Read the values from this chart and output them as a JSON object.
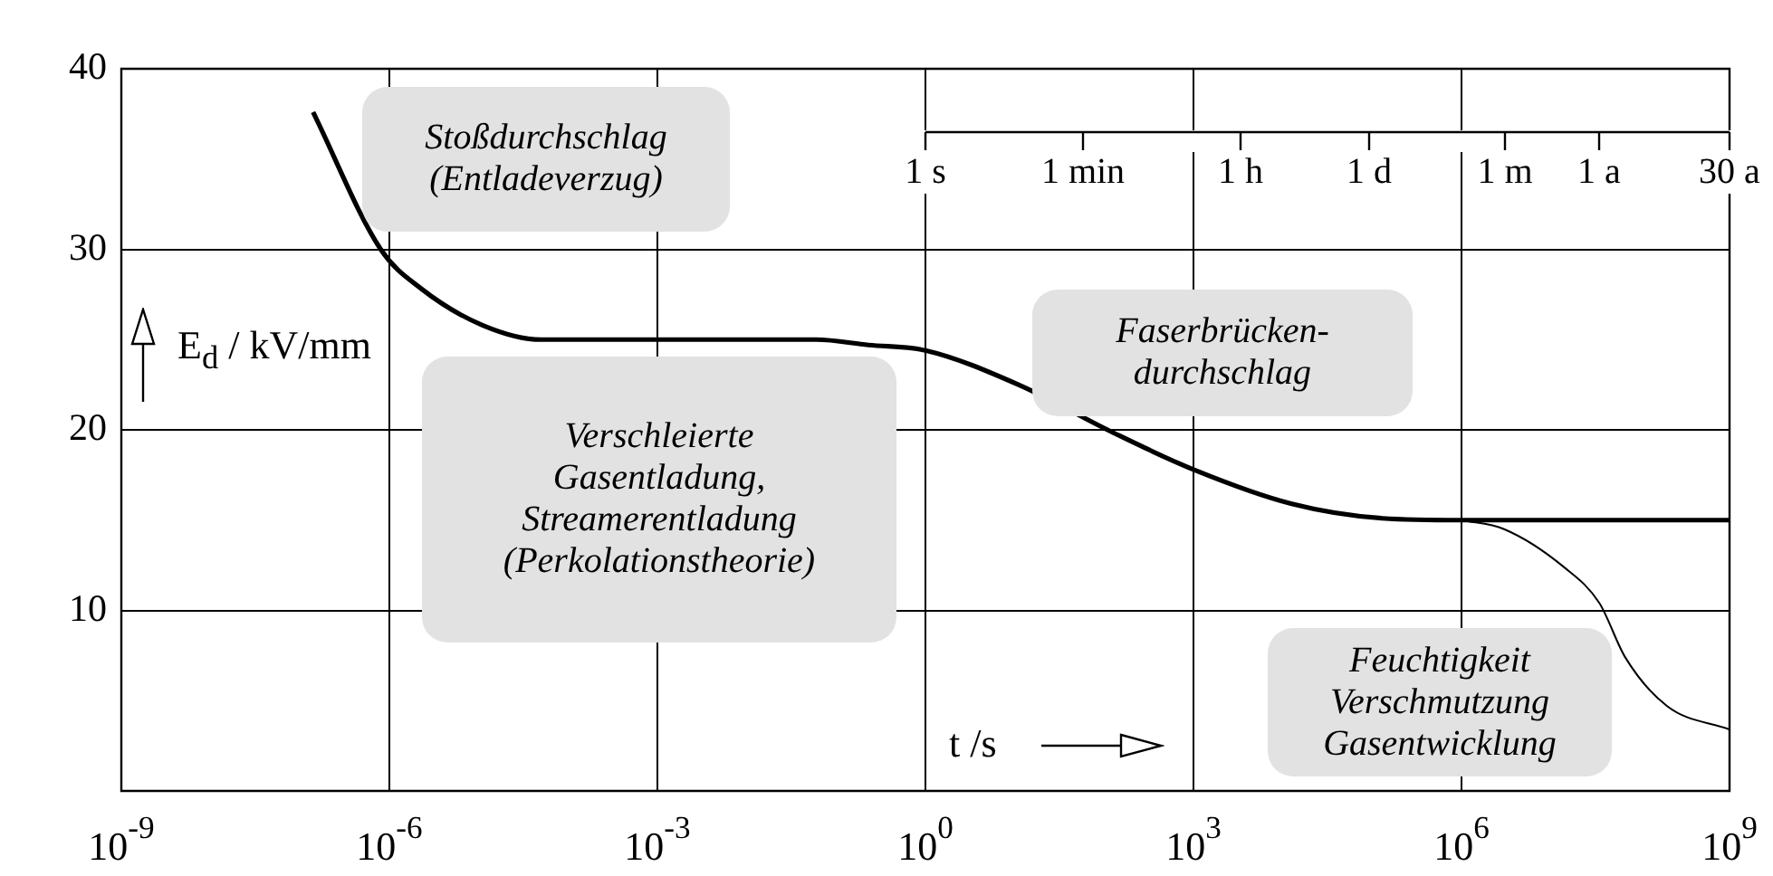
{
  "chart_data": {
    "type": "line",
    "xlabel": "t /s",
    "ylabel": "E$_{d}$ / kV/mm",
    "log": "x",
    "xlim": [
      1e-09,
      1000000000.0
    ],
    "xticks": [
      {
        "value": 1e-09,
        "label": "10$^{-9}$"
      },
      {
        "value": 1e-06,
        "label": "10$^{-6}$"
      },
      {
        "value": 0.001,
        "label": "10$^{-3}$"
      },
      {
        "value": 1,
        "label": "10$^{0}$"
      },
      {
        "value": 1000,
        "label": "10$^{3}$"
      },
      {
        "value": 1000000.0,
        "label": "10$^{6}$"
      },
      {
        "value": 1000000000.0,
        "label": "10$^{9}$"
      }
    ],
    "ylim": [
      0,
      40
    ],
    "yticks": [
      10,
      20,
      30,
      40
    ],
    "grid": true,
    "legend": false,
    "marker": "none",
    "line_style": "solid",
    "series": [
      {
        "color": "#000000",
        "x": [
          1.4e-07,
          8e-07,
          2.3e-06,
          1.1e-05,
          5e-05,
          0.06,
          0.23,
          1,
          11,
          120,
          1000,
          12600,
          130000,
          1000000,
          1000000000
        ],
        "values": [
          37.6,
          30,
          27.8,
          25.8,
          25,
          25,
          24.7,
          24.4,
          22.5,
          19.9,
          17.8,
          15.9,
          15.1,
          15,
          15
        ]
      },
      {
        "color": "#000000",
        "x": [
          1000000,
          3000000,
          14000000,
          35000000,
          68000000,
          200000000,
          1000000000
        ],
        "values": [
          15,
          14.5,
          12.4,
          10.4,
          7.4,
          4.7,
          3.4
        ]
      }
    ],
    "annotations": [
      "Stoßdurchschlag\n(Entladeverzug)",
      "Verschleierte\nGasentladung,\nStreamerentladung\n(Perkolationstheorie)",
      "Faserbrücken-\ndurchschlag",
      "Feuchtigkeit\nVerschmutzung\nGasentwicklung",
      "1 s",
      "1 min",
      "1 h",
      "1 d",
      "1 m",
      "1 a",
      "30 a"
    ]
  }
}
